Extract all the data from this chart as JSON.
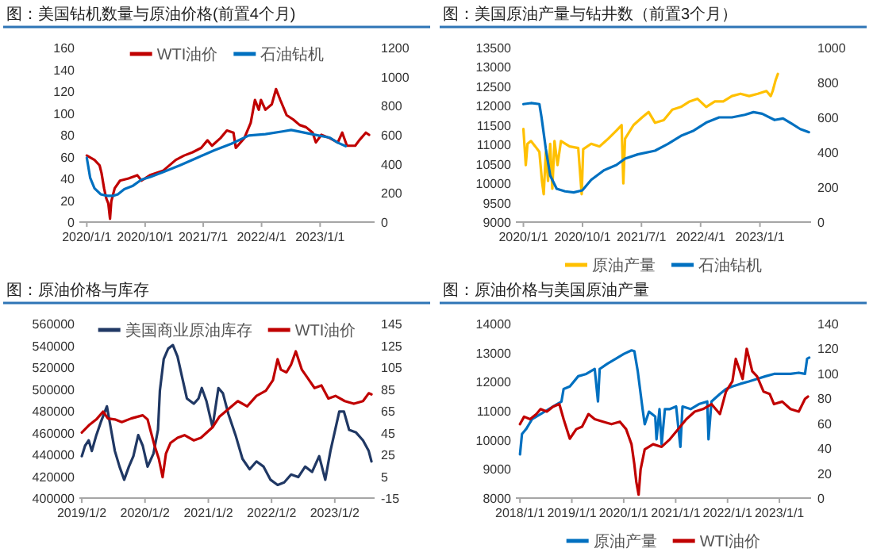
{
  "chart_data": [
    {
      "type": "line",
      "title": "图：美国钻机数量与原油价格(前置4个月)",
      "legend": "top",
      "xlim": [
        "2019-11-27",
        "2023-09-14"
      ],
      "xticks": [
        {
          "value": "2020-01-01",
          "label": "2020/1/1"
        },
        {
          "value": "2020-10-01",
          "label": "2020/10/1"
        },
        {
          "value": "2021-07-01",
          "label": "2021/7/1"
        },
        {
          "value": "2022-04-01",
          "label": "2022/4/1"
        },
        {
          "value": "2023-01-01",
          "label": "2023/1/1"
        }
      ],
      "ylim": [
        0,
        160
      ],
      "yticks": [
        0,
        20,
        40,
        60,
        80,
        100,
        120,
        140,
        160
      ],
      "y2lim": [
        0,
        1200
      ],
      "y2ticks": [
        0,
        200,
        400,
        600,
        800,
        1000,
        1200
      ],
      "series": [
        {
          "name": "WTI油价",
          "color": "#c00000",
          "x": [
            "2020-01-01",
            "2020-02-06",
            "2020-03-01",
            "2020-03-10",
            "2020-03-22",
            "2020-04-01",
            "2020-04-11",
            "2020-04-19",
            "2020-04-25",
            "2020-05-11",
            "2020-06-05",
            "2020-07-15",
            "2020-08-25",
            "2020-09-14",
            "2020-10-24",
            "2020-12-24",
            "2021-02-22",
            "2021-04-02",
            "2021-05-12",
            "2021-06-21",
            "2021-07-21",
            "2021-08-11",
            "2021-09-20",
            "2021-10-20",
            "2021-11-20",
            "2021-12-01",
            "2022-01-10",
            "2022-02-09",
            "2022-03-01",
            "2022-03-19",
            "2022-03-29",
            "2022-04-19",
            "2022-05-19",
            "2022-06-08",
            "2022-06-28",
            "2022-07-28",
            "2022-08-28",
            "2022-09-27",
            "2022-10-27",
            "2022-11-27",
            "2022-12-12",
            "2023-01-07",
            "2023-02-15",
            "2023-03-25",
            "2023-04-15",
            "2023-05-07",
            "2023-06-15",
            "2023-07-04",
            "2023-08-04",
            "2023-08-19"
          ],
          "values": [
            61,
            57,
            52,
            45,
            31,
            22,
            17,
            3,
            19,
            31,
            38,
            40,
            43,
            38,
            43,
            47,
            57,
            61,
            64,
            68,
            75,
            70,
            77,
            84,
            82,
            68,
            77,
            91,
            112,
            103,
            112,
            103,
            108,
            122,
            112,
            98,
            94,
            89,
            87,
            82,
            73,
            80,
            77,
            73,
            82,
            70,
            70,
            75,
            82,
            80
          ]
        },
        {
          "name": "石油钻机",
          "color": "#0070c0",
          "axis": "y2",
          "x": [
            "2020-01-01",
            "2020-01-17",
            "2020-02-06",
            "2020-03-06",
            "2020-04-06",
            "2020-05-06",
            "2020-05-26",
            "2020-06-25",
            "2020-08-05",
            "2020-09-14",
            "2020-10-24",
            "2020-12-24",
            "2021-03-13",
            "2021-06-02",
            "2021-08-22",
            "2021-11-10",
            "2022-01-31",
            "2022-04-19",
            "2022-07-08",
            "2022-08-18",
            "2022-10-17",
            "2022-12-16",
            "2023-02-15",
            "2023-03-25",
            "2023-05-01"
          ],
          "values": [
            442,
            303,
            233,
            191,
            181,
            181,
            191,
            226,
            250,
            292,
            310,
            344,
            390,
            442,
            494,
            539,
            595,
            605,
            623,
            633,
            616,
            598,
            581,
            546,
            522
          ]
        }
      ]
    },
    {
      "type": "line",
      "title": "图：美国原油产量与钻井数（前置3个月）",
      "legend": "bottom",
      "xlim": [
        "2019-11-27",
        "2023-08-26"
      ],
      "xticks": [
        {
          "value": "2020-01-01",
          "label": "2020/1/1"
        },
        {
          "value": "2020-10-01",
          "label": "2020/10/1"
        },
        {
          "value": "2021-07-01",
          "label": "2021/7/1"
        },
        {
          "value": "2022-04-01",
          "label": "2022/4/1"
        },
        {
          "value": "2023-01-01",
          "label": "2023/1/1"
        }
      ],
      "ylim": [
        9000,
        13500
      ],
      "yticks": [
        9000,
        9500,
        10000,
        10500,
        11000,
        11500,
        12000,
        12500,
        13000,
        13500
      ],
      "y2lim": [
        0,
        1000
      ],
      "y2ticks": [
        0,
        200,
        400,
        600,
        800,
        1000
      ],
      "series": [
        {
          "name": "原油产量",
          "color": "#ffc000",
          "x": [
            "2020-01-01",
            "2020-01-12",
            "2020-01-20",
            "2020-02-05",
            "2020-02-25",
            "2020-03-15",
            "2020-03-27",
            "2020-04-04",
            "2020-04-14",
            "2020-04-24",
            "2020-05-04",
            "2020-05-14",
            "2020-05-24",
            "2020-06-07",
            "2020-06-23",
            "2020-08-02",
            "2020-09-11",
            "2020-09-27",
            "2020-10-04",
            "2020-11-10",
            "2020-12-19",
            "2021-01-28",
            "2021-03-07",
            "2021-03-31",
            "2021-04-08",
            "2021-04-16",
            "2021-05-25",
            "2021-07-04",
            "2021-08-03",
            "2021-09-02",
            "2021-10-12",
            "2021-11-21",
            "2021-12-31",
            "2022-02-09",
            "2022-03-18",
            "2022-04-27",
            "2022-06-06",
            "2022-07-15",
            "2022-08-24",
            "2022-10-03",
            "2022-11-12",
            "2022-12-22",
            "2023-01-31",
            "2023-02-20",
            "2023-03-01",
            "2023-03-14",
            "2023-03-25"
          ],
          "values": [
            11400,
            10470,
            11020,
            11090,
            10950,
            10810,
            10060,
            9720,
            10810,
            10060,
            11020,
            9860,
            11090,
            10470,
            11090,
            10950,
            10910,
            9720,
            10880,
            11020,
            10950,
            11150,
            11360,
            11500,
            10000,
            11150,
            11500,
            11700,
            11840,
            11560,
            11630,
            11900,
            11970,
            12110,
            12180,
            11970,
            12110,
            12110,
            12250,
            12310,
            12250,
            12310,
            12380,
            12250,
            12380,
            12650,
            12820
          ]
        },
        {
          "name": "石油钻机",
          "color": "#0070c0",
          "axis": "y2",
          "x": [
            "2020-01-01",
            "2020-02-05",
            "2020-03-15",
            "2020-03-25",
            "2020-04-14",
            "2020-05-04",
            "2020-06-03",
            "2020-07-12",
            "2020-08-21",
            "2020-09-30",
            "2020-11-10",
            "2021-01-08",
            "2021-03-07",
            "2021-04-16",
            "2021-06-14",
            "2021-09-02",
            "2021-11-01",
            "2021-12-31",
            "2022-02-28",
            "2022-04-27",
            "2022-06-26",
            "2022-08-24",
            "2022-10-23",
            "2022-12-02",
            "2023-01-11",
            "2023-03-10",
            "2023-04-18",
            "2023-05-28",
            "2023-07-07",
            "2023-08-16"
          ],
          "values": [
            676,
            682,
            676,
            600,
            418,
            267,
            191,
            176,
            170,
            182,
            242,
            297,
            327,
            364,
            388,
            409,
            448,
            494,
            524,
            570,
            600,
            600,
            615,
            630,
            621,
            585,
            594,
            564,
            533,
            515
          ]
        }
      ]
    },
    {
      "type": "line",
      "title": "图：原油价格与库存",
      "legend": "top",
      "xlim": [
        "2018-12-19",
        "2023-08-20"
      ],
      "xticks": [
        {
          "value": "2019-01-02",
          "label": "2019/1/2"
        },
        {
          "value": "2020-01-02",
          "label": "2020/1/2"
        },
        {
          "value": "2021-01-02",
          "label": "2021/1/2"
        },
        {
          "value": "2022-01-02",
          "label": "2022/1/2"
        },
        {
          "value": "2023-01-02",
          "label": "2023/1/2"
        }
      ],
      "ylim": [
        400000,
        560000
      ],
      "yticks": [
        400000,
        420000,
        440000,
        460000,
        480000,
        500000,
        520000,
        540000,
        560000
      ],
      "y2lim": [
        -15,
        145
      ],
      "y2ticks": [
        -15,
        5,
        25,
        45,
        65,
        85,
        105,
        125,
        145
      ],
      "series": [
        {
          "name": "美国商业原油库存",
          "color": "#203864",
          "x": [
            "2019-01-02",
            "2019-01-21",
            "2019-02-11",
            "2019-03-01",
            "2019-03-27",
            "2019-04-22",
            "2019-05-27",
            "2019-06-15",
            "2019-07-12",
            "2019-08-08",
            "2019-09-04",
            "2019-10-01",
            "2019-10-27",
            "2019-11-24",
            "2019-12-20",
            "2020-01-17",
            "2020-02-20",
            "2020-03-17",
            "2020-03-28",
            "2020-04-19",
            "2020-05-15",
            "2020-06-11",
            "2020-07-08",
            "2020-08-04",
            "2020-08-31",
            "2020-10-10",
            "2020-11-06",
            "2020-11-25",
            "2020-12-22",
            "2021-01-26",
            "2021-03-01",
            "2021-03-27",
            "2021-04-28",
            "2021-06-08",
            "2021-07-18",
            "2021-08-28",
            "2021-10-07",
            "2021-11-17",
            "2021-12-27",
            "2022-02-06",
            "2022-03-16",
            "2022-04-25",
            "2022-06-05",
            "2022-07-15",
            "2022-08-24",
            "2022-10-04",
            "2022-11-08",
            "2022-12-08",
            "2023-01-28",
            "2023-02-24",
            "2023-03-26",
            "2023-05-05",
            "2023-06-14",
            "2023-07-17",
            "2023-08-02"
          ],
          "values": [
            438400,
            448000,
            452900,
            443200,
            457700,
            469700,
            484100,
            467300,
            443200,
            428800,
            416800,
            428800,
            438400,
            457700,
            448000,
            428800,
            440800,
            462500,
            498500,
            527300,
            537000,
            540300,
            529700,
            510500,
            491300,
            486500,
            491300,
            500900,
            488900,
            464900,
            500900,
            496100,
            476900,
            457700,
            436000,
            426400,
            433600,
            428800,
            416800,
            412000,
            414400,
            421600,
            419200,
            428800,
            424000,
            438400,
            416800,
            443200,
            479300,
            479300,
            462500,
            460100,
            452900,
            443200,
            433600
          ]
        },
        {
          "name": "WTI油价",
          "color": "#c00000",
          "axis": "y2",
          "x": [
            "2019-01-02",
            "2019-02-16",
            "2019-03-27",
            "2019-05-05",
            "2019-06-02",
            "2019-07-12",
            "2019-08-21",
            "2019-10-14",
            "2019-12-20",
            "2020-01-17",
            "2020-02-26",
            "2020-03-22",
            "2020-04-13",
            "2020-05-02",
            "2020-05-28",
            "2020-07-08",
            "2020-08-17",
            "2020-10-10",
            "2020-11-20",
            "2021-01-26",
            "2021-03-06",
            "2021-04-28",
            "2021-06-21",
            "2021-08-14",
            "2021-10-07",
            "2021-11-30",
            "2022-01-10",
            "2022-02-06",
            "2022-02-25",
            "2022-03-29",
            "2022-04-25",
            "2022-05-22",
            "2022-06-26",
            "2022-07-28",
            "2022-09-07",
            "2022-10-17",
            "2022-11-26",
            "2023-01-06",
            "2023-03-01",
            "2023-04-22",
            "2023-06-14",
            "2023-07-17",
            "2023-08-02"
          ],
          "values": [
            45.1,
            52.3,
            57.1,
            64.3,
            58.0,
            57.1,
            54.7,
            58.0,
            60.9,
            57.1,
            33.1,
            21.0,
            4.2,
            25.8,
            35.5,
            40.3,
            42.7,
            37.9,
            40.3,
            49.9,
            59.5,
            66.7,
            73.9,
            69.1,
            78.7,
            83.5,
            93.1,
            112.3,
            102.7,
            100.3,
            107.5,
            119.6,
            102.7,
            95.5,
            85.9,
            88.3,
            76.3,
            78.7,
            73.9,
            71.5,
            73.9,
            81.1,
            80.1
          ]
        }
      ]
    },
    {
      "type": "line",
      "title": "图：原油价格与美国原油产量",
      "legend": "bottom",
      "xlim": [
        "2017-12-03",
        "2023-08-12"
      ],
      "xticks": [
        {
          "value": "2018-01-01",
          "label": "2018/1/1"
        },
        {
          "value": "2019-01-01",
          "label": "2019/1/1"
        },
        {
          "value": "2020-01-01",
          "label": "2020/1/1"
        },
        {
          "value": "2021-01-01",
          "label": "2021/1/1"
        },
        {
          "value": "2022-01-01",
          "label": "2022/1/1"
        },
        {
          "value": "2023-01-01",
          "label": "2023/1/1"
        }
      ],
      "ylim": [
        8000,
        14000
      ],
      "yticks": [
        8000,
        9000,
        10000,
        11000,
        12000,
        13000,
        14000
      ],
      "y2lim": [
        0,
        140
      ],
      "y2ticks": [
        0,
        20,
        40,
        60,
        80,
        100,
        120,
        140
      ],
      "series": [
        {
          "name": "原油产量",
          "color": "#0070c0",
          "x": [
            "2018-01-01",
            "2018-01-15",
            "2018-02-13",
            "2018-03-28",
            "2018-05-26",
            "2018-08-22",
            "2018-10-20",
            "2018-11-04",
            "2018-12-18",
            "2019-02-15",
            "2019-04-13",
            "2019-06-11",
            "2019-07-04",
            "2019-07-16",
            "2019-09-08",
            "2019-11-06",
            "2020-01-03",
            "2020-02-25",
            "2020-03-16",
            "2020-04-09",
            "2020-05-13",
            "2020-05-28",
            "2020-06-27",
            "2020-08-10",
            "2020-08-19",
            "2020-09-09",
            "2020-09-24",
            "2020-10-17",
            "2020-11-21",
            "2021-01-04",
            "2021-02-03",
            "2021-02-18",
            "2021-04-16",
            "2021-06-13",
            "2021-08-11",
            "2021-08-20",
            "2021-09-10",
            "2021-11-08",
            "2021-12-21",
            "2022-02-04",
            "2022-04-02",
            "2022-05-31",
            "2022-07-28",
            "2022-09-26",
            "2022-11-24",
            "2023-01-21",
            "2023-03-20",
            "2023-05-17",
            "2023-06-30",
            "2023-07-15",
            "2023-07-30"
          ],
          "values": [
            9500,
            10200,
            10370,
            10720,
            10890,
            11150,
            11320,
            11750,
            11840,
            12190,
            12270,
            12440,
            11320,
            12440,
            12620,
            12790,
            12960,
            13080,
            13050,
            12360,
            11060,
            10540,
            10970,
            10800,
            10020,
            11060,
            9850,
            11060,
            11060,
            11150,
            9760,
            11150,
            11060,
            11230,
            11320,
            10020,
            11320,
            11580,
            11750,
            11840,
            11930,
            12010,
            12100,
            12190,
            12270,
            12270,
            12270,
            12310,
            12270,
            12790,
            12830
          ]
        },
        {
          "name": "WTI油价",
          "color": "#c00000",
          "axis": "y2",
          "x": [
            "2018-01-01",
            "2018-01-30",
            "2018-03-13",
            "2018-04-27",
            "2018-05-26",
            "2018-07-09",
            "2018-08-22",
            "2018-10-05",
            "2018-11-04",
            "2018-12-18",
            "2019-02-01",
            "2019-03-14",
            "2019-04-28",
            "2019-06-11",
            "2019-08-09",
            "2019-10-07",
            "2019-12-05",
            "2020-01-18",
            "2020-02-25",
            "2020-03-16",
            "2020-03-30",
            "2020-04-15",
            "2020-04-29",
            "2020-05-28",
            "2020-07-26",
            "2020-09-24",
            "2020-11-21",
            "2021-01-19",
            "2021-03-17",
            "2021-05-15",
            "2021-07-12",
            "2021-09-10",
            "2021-11-08",
            "2021-12-21",
            "2022-02-04",
            "2022-02-28",
            "2022-03-18",
            "2022-04-17",
            "2022-05-16",
            "2022-06-24",
            "2022-07-28",
            "2022-09-11",
            "2022-10-25",
            "2022-11-24",
            "2023-01-21",
            "2023-03-20",
            "2023-05-17",
            "2023-06-30",
            "2023-07-21"
          ],
          "values": [
            59.3,
            65.3,
            63.3,
            67.4,
            71.4,
            69.4,
            73.4,
            75.4,
            63.3,
            47.6,
            55.3,
            57.3,
            67.4,
            63.3,
            61.3,
            59.3,
            61.3,
            55.3,
            43.2,
            27.0,
            12.9,
            2.8,
            23.0,
            39.1,
            43.2,
            41.1,
            47.2,
            55.3,
            63.3,
            69.4,
            71.4,
            75.4,
            67.4,
            85.5,
            93.6,
            111.7,
            105.7,
            95.6,
            119.8,
            101.7,
            97.6,
            85.5,
            83.5,
            75.4,
            77.4,
            71.4,
            69.4,
            79.5,
            81.5
          ]
        }
      ]
    }
  ]
}
